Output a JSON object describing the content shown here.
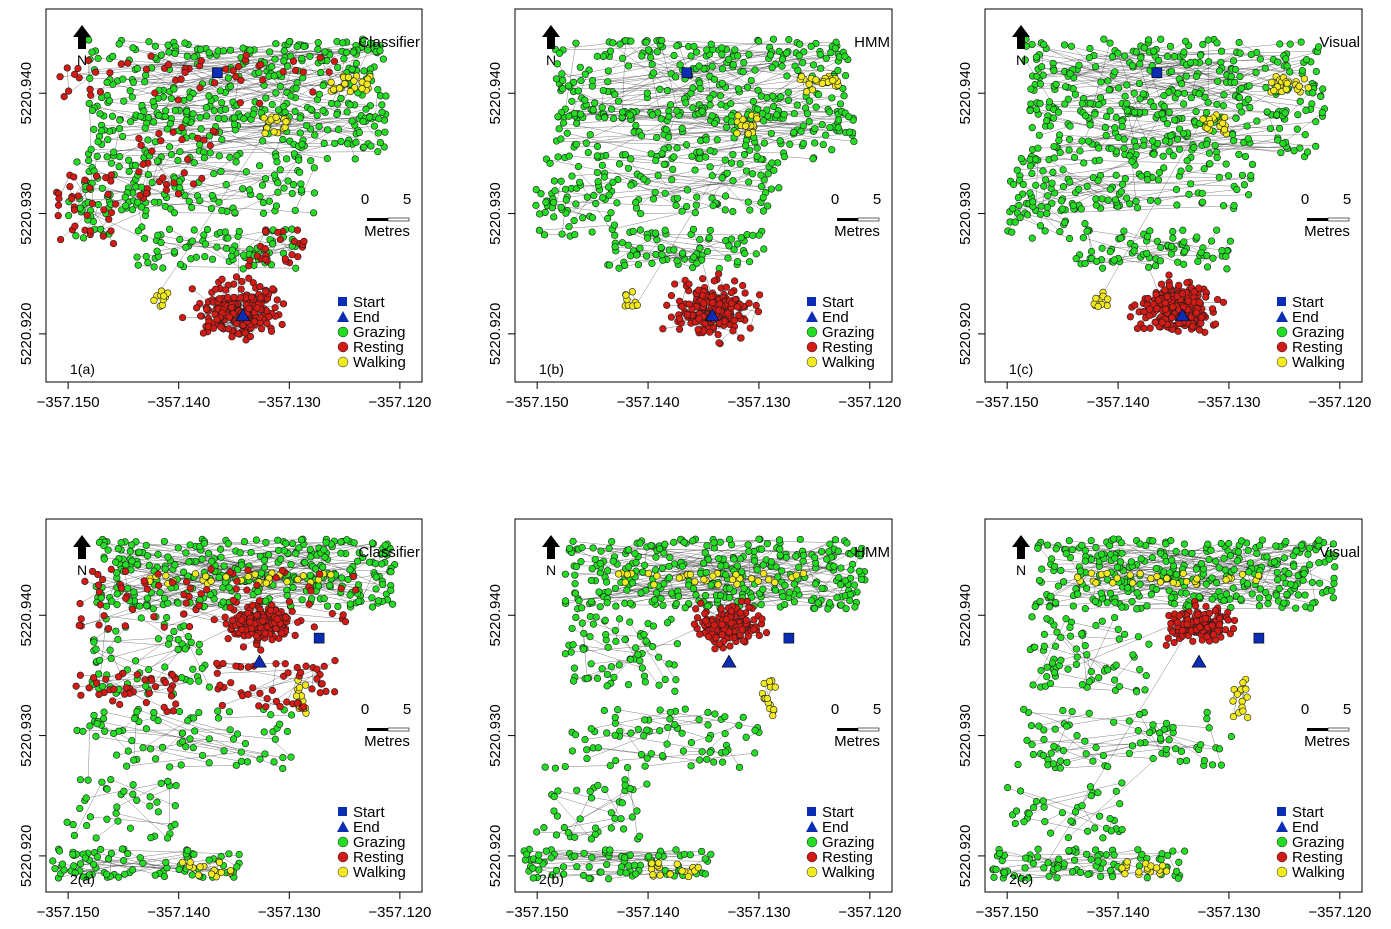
{
  "figure": {
    "north_symbol": "N",
    "scale_unit": "Metres",
    "scale_ticks": [
      "0",
      "5"
    ]
  },
  "colors": {
    "start": "#0a2db4",
    "end": "#0a2db4",
    "grazing": "#22dd22",
    "resting": "#d41a14",
    "walking": "#f2ea1c",
    "path": "#333333"
  },
  "chart_data": [
    {
      "type": "scatter",
      "id": "1a",
      "panel_label": "1(a)",
      "method": "Classifier",
      "xlim": [
        -357.152,
        -357.118
      ],
      "ylim": [
        5220.916,
        5220.947
      ],
      "x_ticks": [
        -357.15,
        -357.14,
        -357.13,
        -357.12
      ],
      "x_tick_labels": [
        "−357.150",
        "−357.140",
        "−357.130",
        "−357.120"
      ],
      "y_ticks": [
        5220.92,
        5220.93,
        5220.94
      ],
      "y_tick_labels": [
        "5220.920",
        "5220.930",
        "5220.940"
      ],
      "start": [
        -357.1365,
        5220.9417
      ],
      "end": [
        -357.1342,
        5220.9215
      ],
      "legend": [
        "Start",
        "End",
        "Grazing",
        "Resting",
        "Walking"
      ]
    },
    {
      "type": "scatter",
      "id": "1b",
      "panel_label": "1(b)",
      "method": "HMM",
      "xlim": [
        -357.152,
        -357.118
      ],
      "ylim": [
        5220.916,
        5220.947
      ],
      "x_ticks": [
        -357.15,
        -357.14,
        -357.13,
        -357.12
      ],
      "x_tick_labels": [
        "−357.150",
        "−357.140",
        "−357.130",
        "−357.120"
      ],
      "y_ticks": [
        5220.92,
        5220.93,
        5220.94
      ],
      "y_tick_labels": [
        "5220.920",
        "5220.930",
        "5220.940"
      ],
      "start": [
        -357.1365,
        5220.9417
      ],
      "end": [
        -357.1342,
        5220.9215
      ],
      "legend": [
        "Start",
        "End",
        "Grazing",
        "Resting",
        "Walking"
      ]
    },
    {
      "type": "scatter",
      "id": "1c",
      "panel_label": "1(c)",
      "method": "Visual",
      "xlim": [
        -357.152,
        -357.118
      ],
      "ylim": [
        5220.916,
        5220.947
      ],
      "x_ticks": [
        -357.15,
        -357.14,
        -357.13,
        -357.12
      ],
      "x_tick_labels": [
        "−357.150",
        "−357.140",
        "−357.130",
        "−357.120"
      ],
      "y_ticks": [
        5220.92,
        5220.93,
        5220.94
      ],
      "y_tick_labels": [
        "5220.920",
        "5220.930",
        "5220.940"
      ],
      "start": [
        -357.1365,
        5220.9417
      ],
      "end": [
        -357.1342,
        5220.9215
      ],
      "legend": [
        "Start",
        "End",
        "Grazing",
        "Resting",
        "Walking"
      ]
    },
    {
      "type": "scatter",
      "id": "2a",
      "panel_label": "2(a)",
      "method": "Classifier",
      "xlim": [
        -357.152,
        -357.118
      ],
      "ylim": [
        5220.917,
        5220.948
      ],
      "x_ticks": [
        -357.15,
        -357.14,
        -357.13,
        -357.12
      ],
      "x_tick_labels": [
        "−357.150",
        "−357.140",
        "−357.130",
        "−357.120"
      ],
      "y_ticks": [
        5220.92,
        5220.93,
        5220.94
      ],
      "y_tick_labels": [
        "5220.920",
        "5220.930",
        "5220.940"
      ],
      "start": [
        -357.1273,
        5220.9381
      ],
      "end": [
        -357.1327,
        5220.9361
      ],
      "legend": [
        "Start",
        "End",
        "Grazing",
        "Resting",
        "Walking"
      ]
    },
    {
      "type": "scatter",
      "id": "2b",
      "panel_label": "2(b)",
      "method": "HMM",
      "xlim": [
        -357.152,
        -357.118
      ],
      "ylim": [
        5220.917,
        5220.948
      ],
      "x_ticks": [
        -357.15,
        -357.14,
        -357.13,
        -357.12
      ],
      "x_tick_labels": [
        "−357.150",
        "−357.140",
        "−357.130",
        "−357.120"
      ],
      "y_ticks": [
        5220.92,
        5220.93,
        5220.94
      ],
      "y_tick_labels": [
        "5220.920",
        "5220.930",
        "5220.940"
      ],
      "start": [
        -357.1273,
        5220.9381
      ],
      "end": [
        -357.1327,
        5220.9361
      ],
      "legend": [
        "Start",
        "End",
        "Grazing",
        "Resting",
        "Walking"
      ]
    },
    {
      "type": "scatter",
      "id": "2c",
      "panel_label": "2(c)",
      "method": "Visual",
      "xlim": [
        -357.152,
        -357.118
      ],
      "ylim": [
        5220.917,
        5220.948
      ],
      "x_ticks": [
        -357.15,
        -357.14,
        -357.13,
        -357.12
      ],
      "x_tick_labels": [
        "−357.150",
        "−357.140",
        "−357.130",
        "−357.120"
      ],
      "y_ticks": [
        5220.92,
        5220.93,
        5220.94
      ],
      "y_tick_labels": [
        "5220.920",
        "5220.930",
        "5220.940"
      ],
      "start": [
        -357.1273,
        5220.9381
      ],
      "end": [
        -357.1327,
        5220.9361
      ],
      "legend": [
        "Start",
        "End",
        "Grazing",
        "Resting",
        "Walking"
      ]
    }
  ]
}
